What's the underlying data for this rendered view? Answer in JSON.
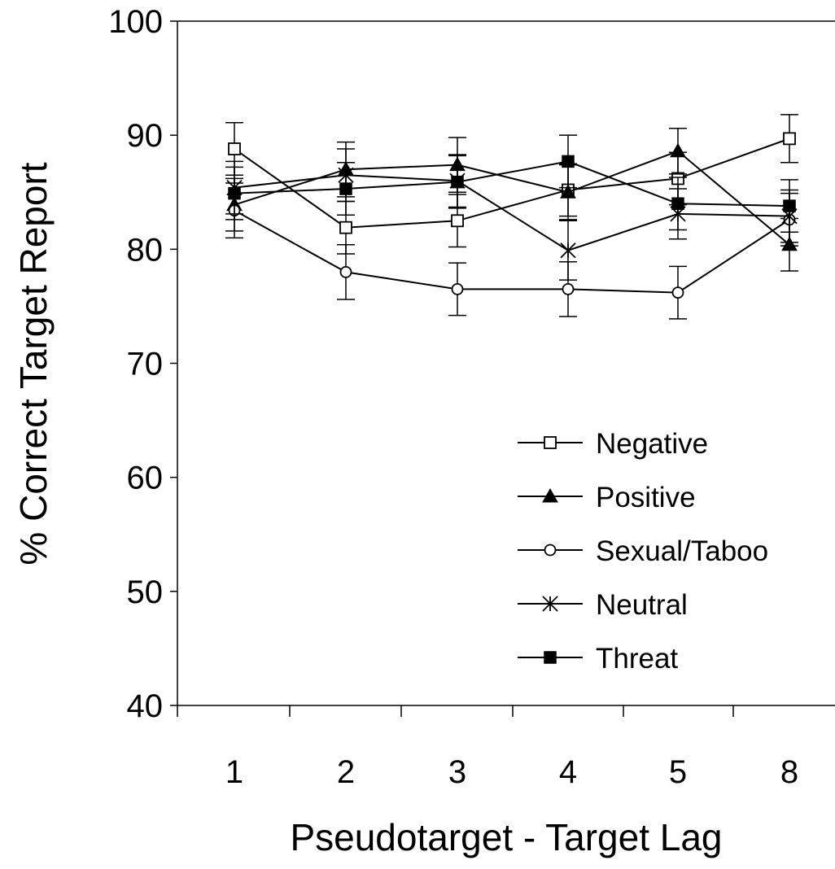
{
  "chart_data": {
    "type": "line",
    "title": "",
    "xlabel": "Pseudotarget - Target  Lag",
    "ylabel": "% Correct  Target  Report",
    "categories": [
      "1",
      "2",
      "3",
      "4",
      "5",
      "8"
    ],
    "ylim": [
      40,
      100
    ],
    "yticks": [
      40,
      50,
      60,
      70,
      80,
      90,
      100
    ],
    "grid": false,
    "legend_position": "lower-right",
    "series": [
      {
        "name": "Negative",
        "marker": "open-square",
        "values": [
          88.8,
          81.9,
          82.5,
          85.2,
          86.2,
          89.7
        ],
        "error": [
          2.3,
          2.3,
          2.3,
          2.3,
          2.3,
          2.1
        ]
      },
      {
        "name": "Positive",
        "marker": "filled-triangle",
        "values": [
          83.9,
          87.0,
          87.4,
          85.0,
          88.6,
          80.4
        ],
        "error": [
          2.3,
          2.4,
          2.4,
          2.4,
          2.0,
          2.3
        ]
      },
      {
        "name": "Sexual/Taboo",
        "marker": "open-circle",
        "values": [
          83.4,
          78.0,
          76.5,
          76.5,
          76.2,
          82.6
        ],
        "error": [
          2.4,
          2.4,
          2.3,
          2.4,
          2.3,
          2.3
        ]
      },
      {
        "name": "Neutral",
        "marker": "asterisk",
        "values": [
          85.4,
          86.5,
          86.0,
          79.9,
          83.1,
          82.9
        ],
        "error": [
          2.3,
          2.3,
          2.3,
          2.6,
          2.2,
          2.3
        ]
      },
      {
        "name": "Threat",
        "marker": "filled-square",
        "values": [
          84.9,
          85.3,
          85.9,
          87.7,
          84.0,
          83.8
        ],
        "error": [
          2.3,
          2.3,
          2.3,
          2.3,
          2.3,
          2.3
        ]
      }
    ]
  }
}
